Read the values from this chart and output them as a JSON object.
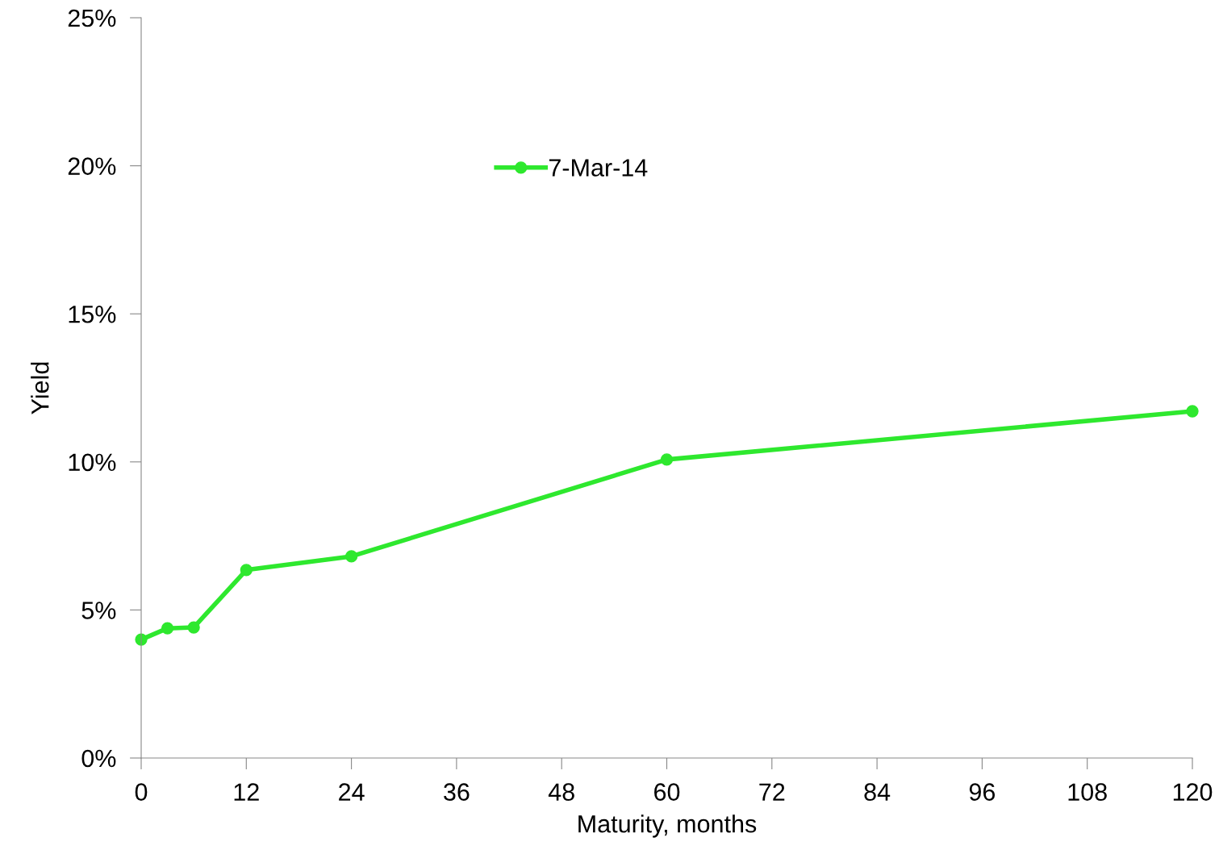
{
  "chart_data": {
    "type": "line",
    "xlabel": "Maturity, months",
    "ylabel": "Yield",
    "x": [
      0,
      3,
      6,
      12,
      24,
      60,
      120
    ],
    "series": [
      {
        "name": "7-Mar-14",
        "color": "#2ee82e",
        "values": [
          4.0,
          4.38,
          4.41,
          6.35,
          6.81,
          10.08,
          11.71
        ]
      }
    ],
    "xlim": [
      0,
      120
    ],
    "xticks": [
      0,
      12,
      24,
      36,
      48,
      60,
      72,
      84,
      96,
      108,
      120
    ],
    "ylim": [
      0,
      25
    ],
    "yticks": [
      {
        "value": 0,
        "label": "0%"
      },
      {
        "value": 5,
        "label": "5%"
      },
      {
        "value": 10,
        "label": "10%"
      },
      {
        "value": 15,
        "label": "15%"
      },
      {
        "value": 20,
        "label": "20%"
      },
      {
        "value": 25,
        "label": "25%"
      }
    ],
    "marker": "circle",
    "line_style": "solid",
    "grid": false,
    "legend": "top"
  }
}
